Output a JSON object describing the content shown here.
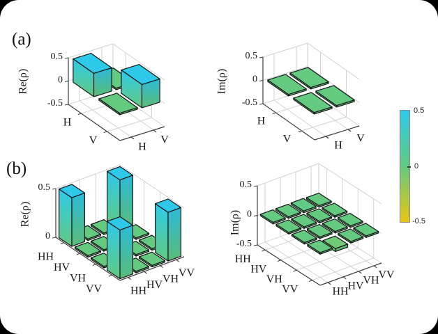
{
  "frame": {
    "background": "#000000",
    "card_background": "#ffffff"
  },
  "panels": {
    "a_label": "(a)",
    "b_label": "(b)"
  },
  "colormap": {
    "neg": "#e9c517",
    "zero": "#63ca80",
    "pos": "#2ec9e9"
  },
  "colorbar": {
    "min": -0.5,
    "max": 0.5,
    "tick_labels": [
      "0.5",
      "0",
      "-0.5"
    ]
  },
  "chart_data": [
    {
      "id": "a-re",
      "type": "bar3d",
      "zlabel": "Re(ρ)",
      "row_labels": [
        "H",
        "V"
      ],
      "col_labels": [
        "H",
        "V"
      ],
      "values": [
        [
          0.5,
          0
        ],
        [
          0,
          0.5
        ]
      ],
      "zlim": [
        -0.5,
        0.5
      ],
      "zticks": [
        0.5,
        0,
        -0.5
      ],
      "ztick_labels": [
        "0.5",
        "0",
        "-0.5"
      ],
      "grid": true
    },
    {
      "id": "a-im",
      "type": "bar3d",
      "zlabel": "Im(ρ)",
      "row_labels": [
        "H",
        "V"
      ],
      "col_labels": [
        "H",
        "V"
      ],
      "values": [
        [
          0,
          0
        ],
        [
          0,
          0
        ]
      ],
      "zlim": [
        -0.5,
        0.5
      ],
      "zticks": [
        0.5,
        0,
        -0.5
      ],
      "ztick_labels": [
        "0.5",
        "0",
        "-0.5"
      ],
      "grid": true
    },
    {
      "id": "b-re",
      "type": "bar3d",
      "zlabel": "Re(ρ)",
      "row_labels": [
        "HH",
        "HV",
        "VH",
        "VV"
      ],
      "col_labels": [
        "HH",
        "HV",
        "VH",
        "VV"
      ],
      "values": [
        [
          0.5,
          0,
          0,
          0.5
        ],
        [
          0,
          0,
          0,
          0
        ],
        [
          0,
          0,
          0,
          0
        ],
        [
          0.5,
          0,
          0,
          0.5
        ]
      ],
      "zlim": [
        0,
        0.5
      ],
      "zticks": [
        0.5,
        0
      ],
      "ztick_labels": [
        "0.5",
        "0"
      ],
      "grid": true
    },
    {
      "id": "b-im",
      "type": "bar3d",
      "zlabel": "Im(ρ)",
      "row_labels": [
        "HH",
        "HV",
        "VH",
        "VV"
      ],
      "col_labels": [
        "HH",
        "HV",
        "VH",
        "VV"
      ],
      "values": [
        [
          0,
          0,
          0.03,
          0
        ],
        [
          0,
          0,
          0,
          0
        ],
        [
          0,
          0,
          0,
          0
        ],
        [
          0,
          -0.05,
          0,
          0
        ]
      ],
      "zlim": [
        -0.5,
        0.5
      ],
      "zticks": [
        0.5,
        0,
        -0.5
      ],
      "ztick_labels": [
        "0.5",
        "0",
        "-0.5"
      ],
      "grid": true
    }
  ]
}
